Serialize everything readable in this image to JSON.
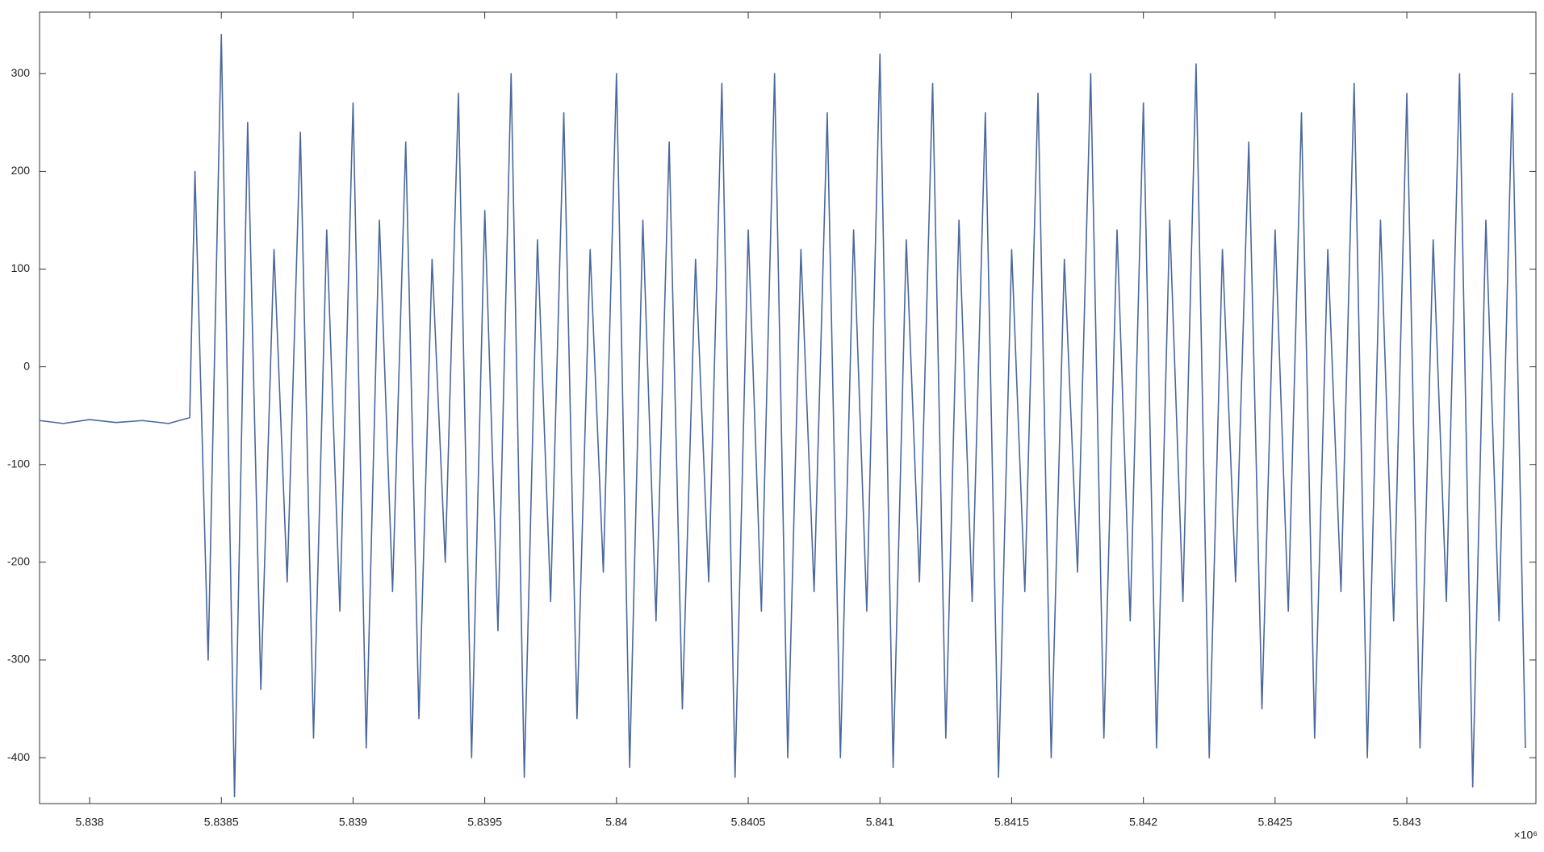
{
  "chart_data": {
    "type": "line",
    "x_multiplier": "×10⁶",
    "color": "#4a689c",
    "x": [
      5.83781,
      5.8379,
      5.838,
      5.8381,
      5.8382,
      5.8383,
      5.83838,
      5.8384,
      5.83845,
      5.8385,
      5.83855,
      5.8386,
      5.83865,
      5.8387,
      5.83875,
      5.8388,
      5.83885,
      5.8389,
      5.83895,
      5.839,
      5.83905,
      5.8391,
      5.83915,
      5.8392,
      5.83925,
      5.8393,
      5.83935,
      5.8394,
      5.83945,
      5.8395,
      5.83955,
      5.8396,
      5.83965,
      5.8397,
      5.83975,
      5.8398,
      5.83985,
      5.8399,
      5.83995,
      5.84,
      5.84005,
      5.8401,
      5.84015,
      5.8402,
      5.84025,
      5.8403,
      5.84035,
      5.8404,
      5.84045,
      5.8405,
      5.84055,
      5.8406,
      5.84065,
      5.8407,
      5.84075,
      5.8408,
      5.84085,
      5.8409,
      5.84095,
      5.841,
      5.84105,
      5.8411,
      5.84115,
      5.8412,
      5.84125,
      5.8413,
      5.84135,
      5.8414,
      5.84145,
      5.8415,
      5.84155,
      5.8416,
      5.84165,
      5.8417,
      5.84175,
      5.8418,
      5.84185,
      5.8419,
      5.84195,
      5.842,
      5.84205,
      5.8421,
      5.84215,
      5.8422,
      5.84225,
      5.8423,
      5.84235,
      5.8424,
      5.84245,
      5.8425,
      5.84255,
      5.8426,
      5.84265,
      5.8427,
      5.84275,
      5.8428,
      5.84285,
      5.8429,
      5.84295,
      5.843,
      5.84305,
      5.8431,
      5.84315,
      5.8432,
      5.84325,
      5.8433,
      5.84335,
      5.8434,
      5.84345
    ],
    "values": [
      -55,
      -58,
      -54,
      -57,
      -55,
      -58,
      -52,
      200,
      -300,
      340,
      -440,
      250,
      -330,
      120,
      -220,
      240,
      -380,
      140,
      -250,
      270,
      -390,
      150,
      -230,
      230,
      -360,
      110,
      -200,
      280,
      -400,
      160,
      -270,
      300,
      -420,
      130,
      -240,
      260,
      -360,
      120,
      -210,
      300,
      -410,
      150,
      -260,
      230,
      -350,
      110,
      -220,
      290,
      -420,
      140,
      -250,
      300,
      -400,
      120,
      -230,
      260,
      -400,
      140,
      -250,
      320,
      -410,
      130,
      -220,
      290,
      -380,
      150,
      -240,
      260,
      -420,
      120,
      -230,
      280,
      -400,
      110,
      -210,
      300,
      -380,
      140,
      -260,
      270,
      -390,
      150,
      -240,
      310,
      -400,
      120,
      -220,
      230,
      -350,
      140,
      -250,
      260,
      -380,
      120,
      -230,
      290,
      -400,
      150,
      -260,
      280,
      -390,
      130,
      -240,
      300,
      -430,
      150,
      -260,
      280,
      -390
    ],
    "xlim": [
      5.83781,
      5.84349
    ],
    "ylim": [
      -447,
      363
    ],
    "xticks": [
      5.838,
      5.8385,
      5.839,
      5.8395,
      5.84,
      5.8405,
      5.841,
      5.8415,
      5.842,
      5.8425,
      5.843
    ],
    "yticks": [
      300,
      200,
      100,
      0,
      -100,
      -200,
      -300,
      -400
    ],
    "grid": false
  }
}
